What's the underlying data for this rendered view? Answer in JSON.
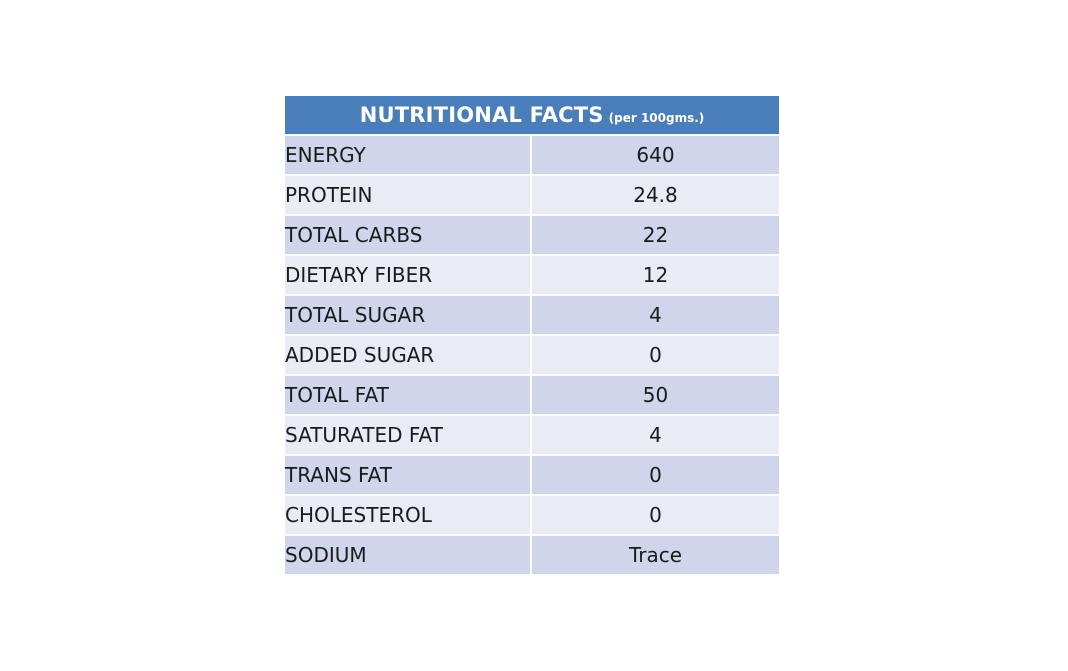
{
  "header": {
    "title": "NUTRITIONAL FACTS",
    "subtitle": "(per 100gms.)"
  },
  "rows": [
    {
      "label": "ENERGY",
      "value": "640"
    },
    {
      "label": "PROTEIN",
      "value": "24.8"
    },
    {
      "label": "TOTAL CARBS",
      "value": "22"
    },
    {
      "label": "DIETARY FIBER",
      "value": "12"
    },
    {
      "label": "TOTAL SUGAR",
      "value": "4"
    },
    {
      "label": "ADDED SUGAR",
      "value": "0"
    },
    {
      "label": "TOTAL FAT",
      "value": "50"
    },
    {
      "label": "SATURATED FAT",
      "value": "4"
    },
    {
      "label": "TRANS FAT",
      "value": "0"
    },
    {
      "label": "CHOLESTEROL",
      "value": "0"
    },
    {
      "label": "SODIUM",
      "value": "Trace"
    }
  ],
  "colors": {
    "header_bg": "#4a7ebb",
    "row_odd": "#cfd5ea",
    "row_even": "#e9ebf5"
  }
}
